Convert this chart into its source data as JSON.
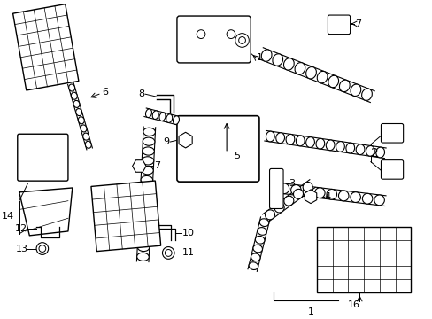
{
  "background_color": "#ffffff",
  "line_color": "#000000",
  "figsize": [
    4.89,
    3.6
  ],
  "dpi": 100
}
